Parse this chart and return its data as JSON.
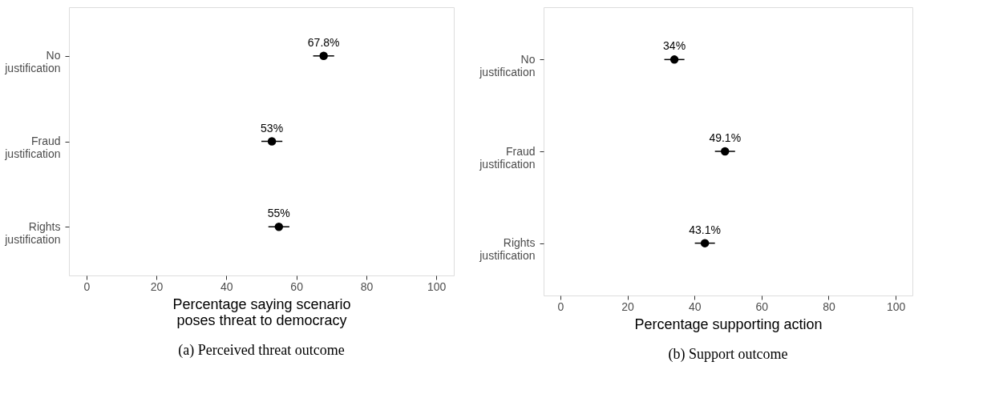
{
  "chart_data": [
    {
      "type": "scatter",
      "orientation": "horizontal",
      "title": "(a) Perceived threat outcome",
      "xlabel": "Percentage saying scenario poses threat to democracy",
      "categories": [
        "No justification",
        "Fraud justification",
        "Rights justification"
      ],
      "values": [
        67.8,
        53,
        55
      ],
      "errors": [
        3,
        3,
        3
      ],
      "value_labels": [
        "67.8%",
        "53%",
        "55%"
      ],
      "color": "#000000",
      "marker": "circle",
      "xlim": [
        -5,
        105
      ],
      "xticks": [
        0,
        20,
        40,
        60,
        80,
        100
      ],
      "grid": false
    },
    {
      "type": "scatter",
      "orientation": "horizontal",
      "title": "(b) Support outcome",
      "xlabel": "Percentage supporting action",
      "categories": [
        "No justification",
        "Fraud justification",
        "Rights justification"
      ],
      "values": [
        34,
        49.1,
        43.1
      ],
      "errors": [
        3,
        3,
        3
      ],
      "value_labels": [
        "34%",
        "49.1%",
        "43.1%"
      ],
      "color": "#000000",
      "marker": "circle",
      "xlim": [
        -5,
        105
      ],
      "xticks": [
        0,
        20,
        40,
        60,
        80,
        100
      ],
      "grid": false
    }
  ]
}
